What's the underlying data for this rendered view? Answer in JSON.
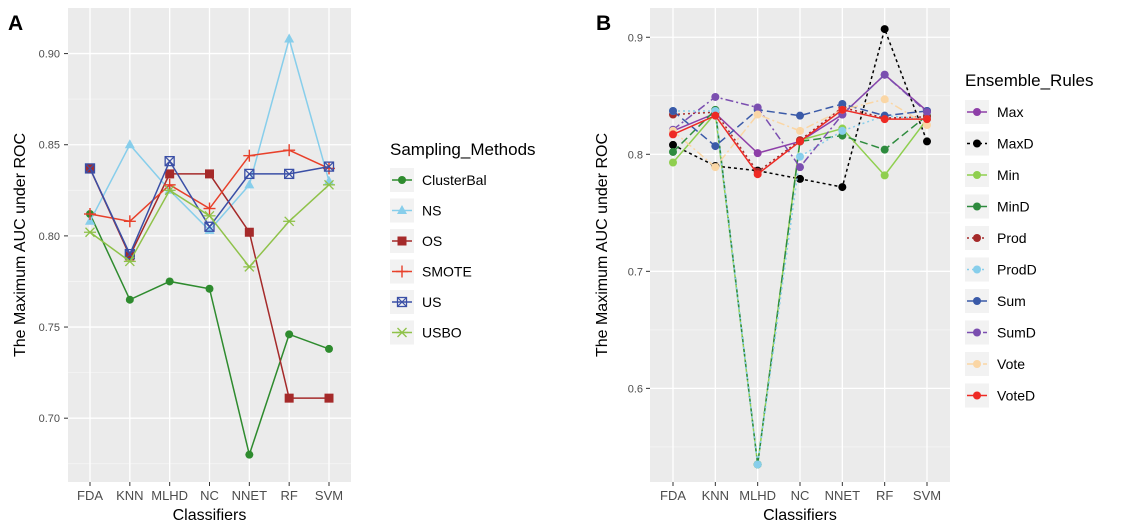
{
  "chart_data": [
    {
      "panel": "A",
      "type": "line",
      "categories": [
        "FDA",
        "KNN",
        "MLHD",
        "NC",
        "NNET",
        "RF",
        "SVM"
      ],
      "xlabel": "Classifiers",
      "ylabel": "The Maximum AUC under ROC",
      "ylim": [
        0.665,
        0.925
      ],
      "yticks": [
        0.7,
        0.75,
        0.8,
        0.85,
        0.9
      ],
      "ytick_labels": [
        "0.70",
        "0.75",
        "0.80",
        "0.85",
        "0.90"
      ],
      "grid": true,
      "legend_title": "Sampling_Methods",
      "legend_position": "right",
      "series": [
        {
          "name": "ClusterBal",
          "color": "#2e8b2e",
          "marker": "circle",
          "dash": "solid",
          "values": [
            0.812,
            0.765,
            0.775,
            0.771,
            0.68,
            0.746,
            0.738
          ]
        },
        {
          "name": "NS",
          "color": "#87ceeb",
          "marker": "triangle",
          "dash": "solid",
          "values": [
            0.808,
            0.85,
            0.825,
            0.803,
            0.828,
            0.908,
            0.83
          ]
        },
        {
          "name": "OS",
          "color": "#a52a2a",
          "marker": "square",
          "dash": "solid",
          "values": [
            0.837,
            0.789,
            0.834,
            0.834,
            0.802,
            0.711,
            0.711
          ]
        },
        {
          "name": "SMOTE",
          "color": "#e8402a",
          "marker": "plus",
          "dash": "solid",
          "values": [
            0.812,
            0.808,
            0.828,
            0.815,
            0.844,
            0.847,
            0.837
          ]
        },
        {
          "name": "US",
          "color": "#3a4fa6",
          "marker": "squarex",
          "dash": "solid",
          "values": [
            0.837,
            0.79,
            0.841,
            0.805,
            0.834,
            0.834,
            0.838
          ]
        },
        {
          "name": "USBO",
          "color": "#8fc24a",
          "marker": "asterisk",
          "dash": "solid",
          "values": [
            0.802,
            0.786,
            0.825,
            0.811,
            0.783,
            0.808,
            0.828
          ]
        }
      ]
    },
    {
      "panel": "B",
      "type": "line",
      "categories": [
        "FDA",
        "KNN",
        "MLHD",
        "NC",
        "NNET",
        "RF",
        "SVM"
      ],
      "xlabel": "Classifiers",
      "ylabel": "The Maximum AUC under ROC",
      "ylim": [
        0.52,
        0.925
      ],
      "yticks": [
        0.6,
        0.7,
        0.8,
        0.9
      ],
      "ytick_labels": [
        "0.6",
        "0.7",
        "0.8",
        "0.9"
      ],
      "grid": true,
      "legend_title": "Ensemble_Rules",
      "legend_position": "right",
      "series": [
        {
          "name": "Max",
          "color": "#8e3fa8",
          "marker": "circle",
          "dash": "solid",
          "values": [
            0.82,
            0.835,
            0.801,
            0.811,
            0.834,
            0.868,
            0.837
          ]
        },
        {
          "name": "MaxD",
          "color": "#000000",
          "marker": "circle",
          "dash": "3,3",
          "values": [
            0.808,
            0.79,
            0.786,
            0.779,
            0.772,
            0.907,
            0.811
          ]
        },
        {
          "name": "Min",
          "color": "#8fcf4f",
          "marker": "circle",
          "dash": "solid",
          "values": [
            0.793,
            0.835,
            0.535,
            0.812,
            0.822,
            0.782,
            0.83
          ]
        },
        {
          "name": "MinD",
          "color": "#2e8b3e",
          "marker": "circle",
          "dash": "8,4",
          "values": [
            0.802,
            0.838,
            0.535,
            0.811,
            0.816,
            0.804,
            0.833
          ]
        },
        {
          "name": "Prod",
          "color": "#a52a2a",
          "marker": "circle",
          "dash": "2,3",
          "values": [
            0.834,
            0.836,
            0.785,
            0.812,
            0.84,
            0.831,
            0.832
          ]
        },
        {
          "name": "ProdD",
          "color": "#87ceeb",
          "marker": "circle",
          "dash": "2,3",
          "values": [
            0.837,
            0.837,
            0.535,
            0.798,
            0.82,
            0.833,
            0.83
          ]
        },
        {
          "name": "Sum",
          "color": "#3a5aa8",
          "marker": "circle",
          "dash": "8,4",
          "values": [
            0.837,
            0.807,
            0.838,
            0.833,
            0.843,
            0.833,
            0.837
          ]
        },
        {
          "name": "SumD",
          "color": "#7b4fb0",
          "marker": "circle",
          "dash": "8,3,2,3",
          "values": [
            0.821,
            0.849,
            0.84,
            0.789,
            0.834,
            0.868,
            0.836
          ]
        },
        {
          "name": "Vote",
          "color": "#fad6a5",
          "marker": "circle",
          "dash": "8,3,2,3",
          "values": [
            0.82,
            0.789,
            0.834,
            0.82,
            0.838,
            0.847,
            0.825
          ]
        },
        {
          "name": "VoteD",
          "color": "#ee2a24",
          "marker": "circle",
          "dash": "solid",
          "values": [
            0.817,
            0.833,
            0.783,
            0.811,
            0.838,
            0.83,
            0.83
          ]
        }
      ]
    }
  ]
}
